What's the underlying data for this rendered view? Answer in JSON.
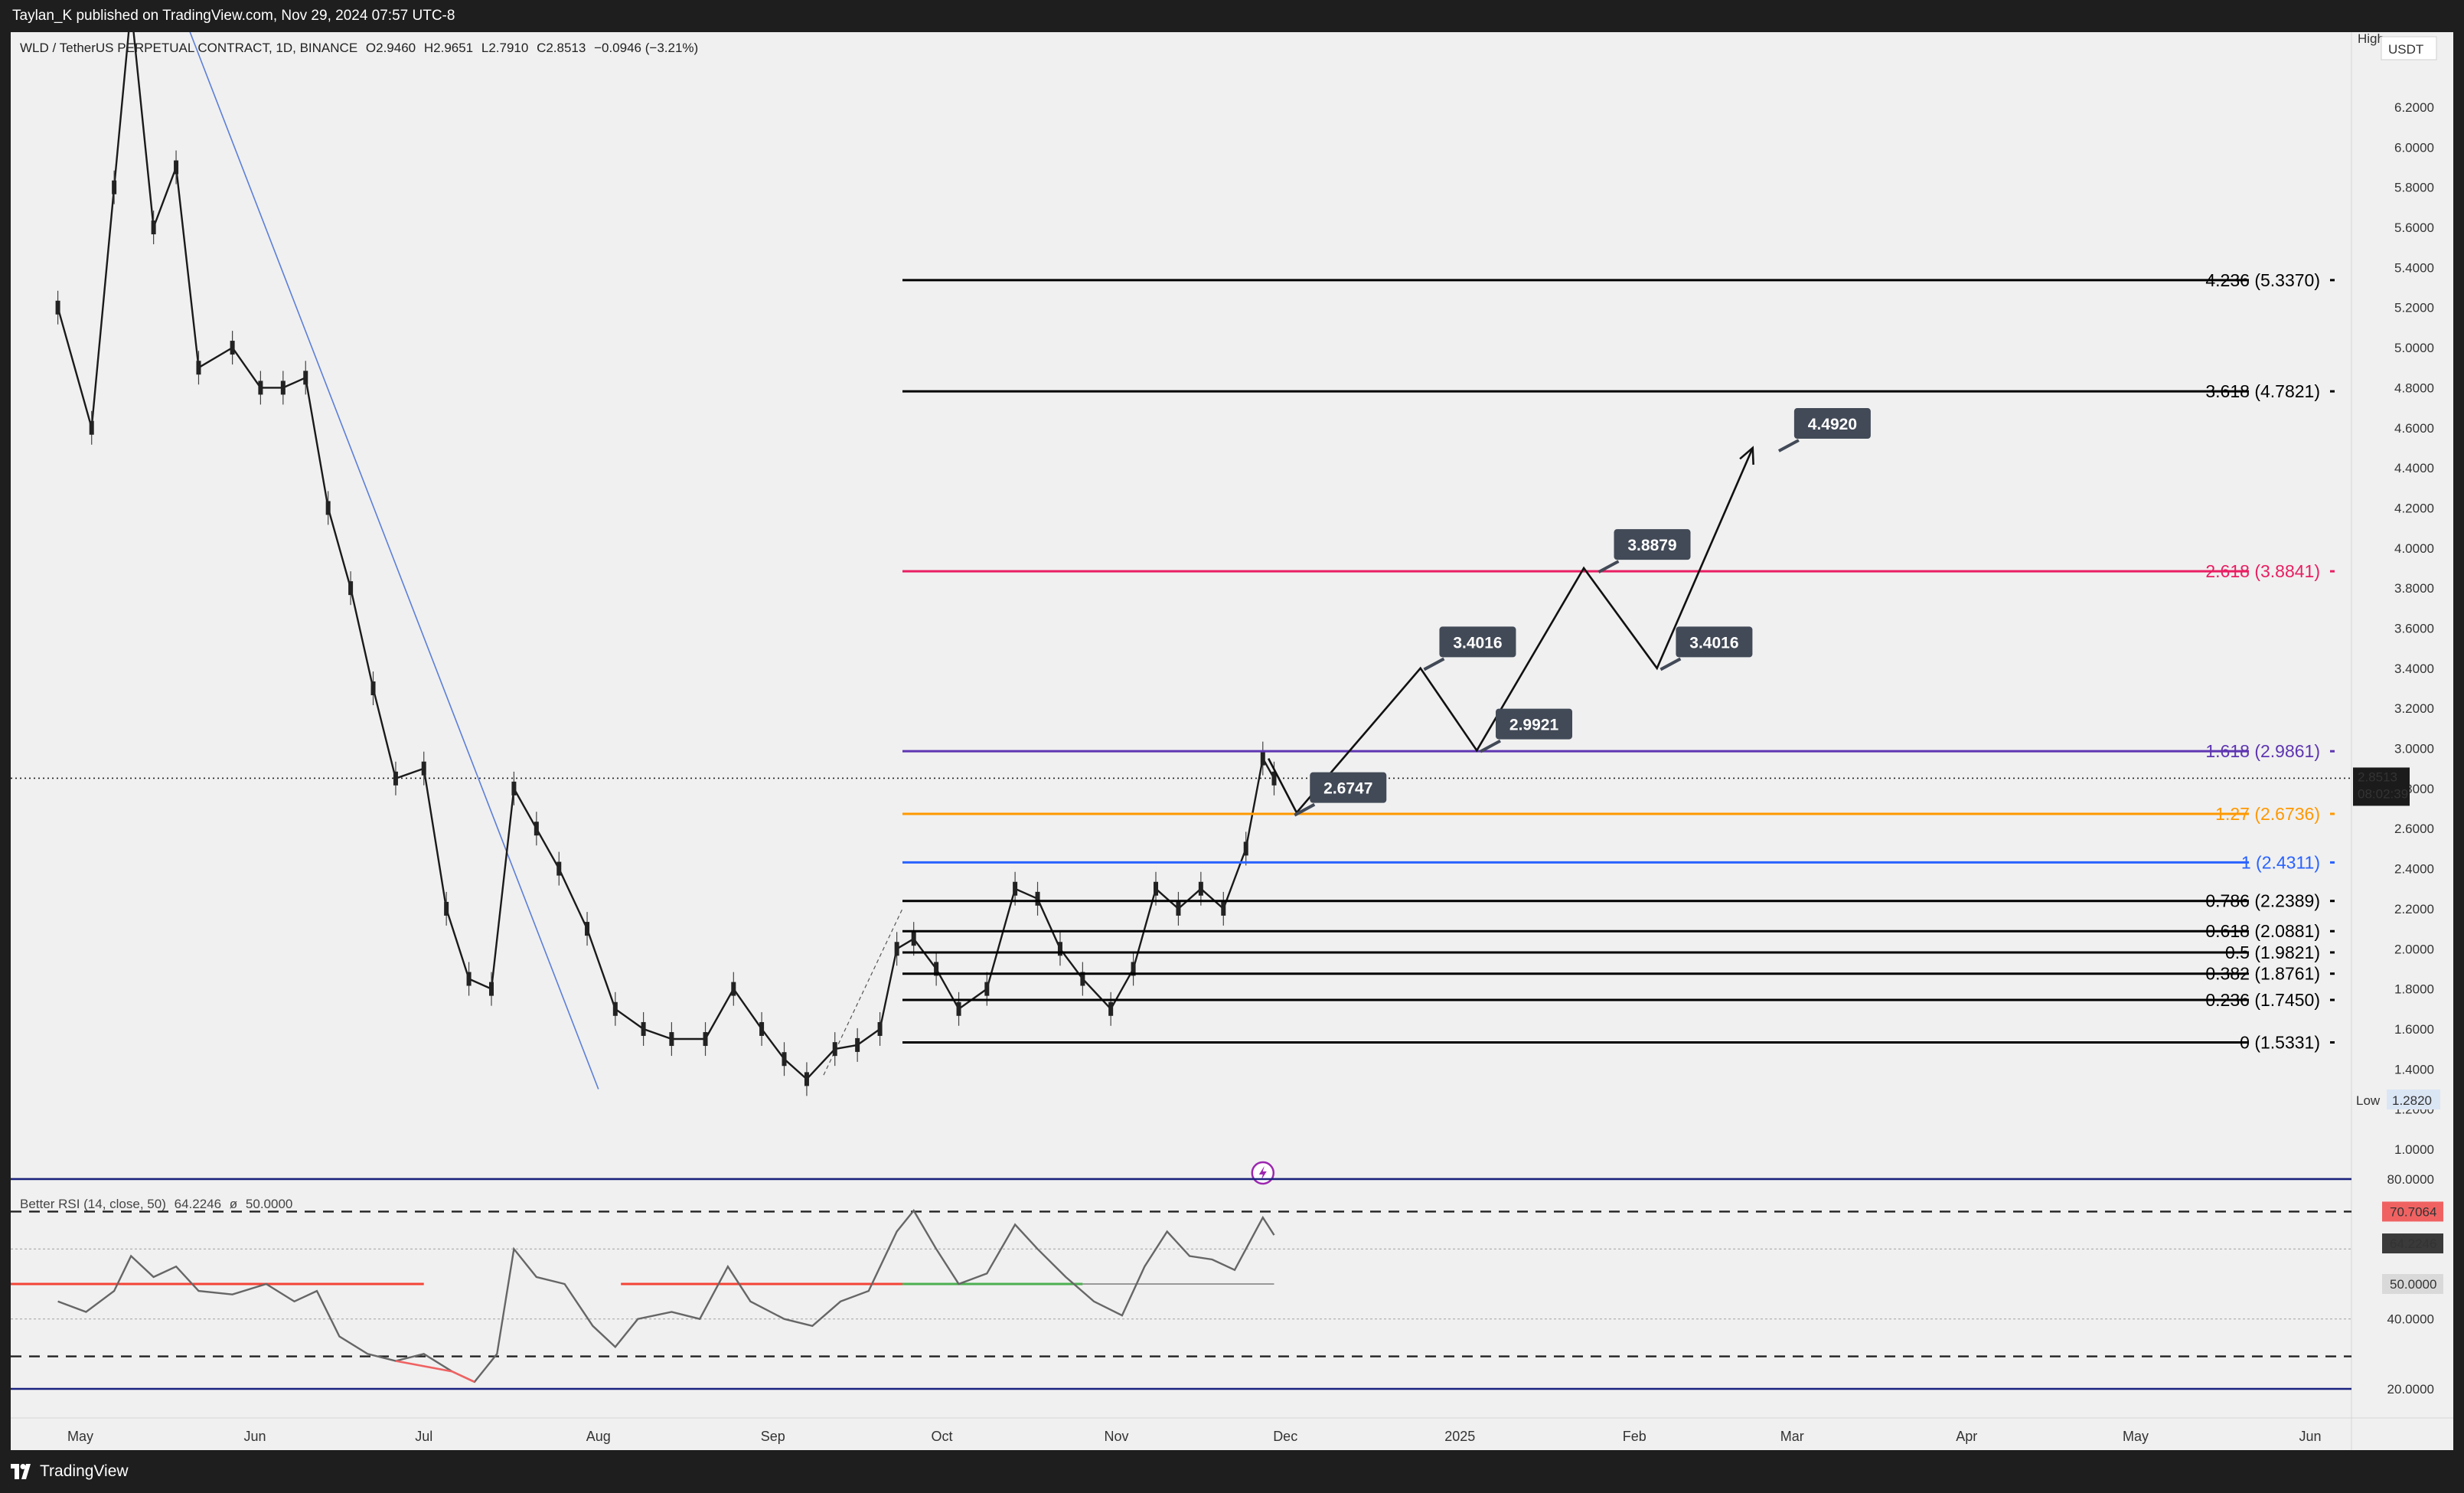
{
  "header": {
    "published": "Taylan_K published on TradingView.com, Nov 29, 2024 07:57 UTC-8"
  },
  "footer": {
    "brand": "TradingView"
  },
  "legend": {
    "symbol": "WLD / TetherUS PERPETUAL CONTRACT, 1D, BINANCE",
    "open": "O2.9460",
    "high": "H2.9651",
    "low": "L2.7910",
    "close": "C2.8513",
    "change": "−0.0946 (−3.21%)"
  },
  "rsi_legend": {
    "name": "Better RSI (14, close, 50)",
    "value": "64.2246",
    "symbol": "ø",
    "mid": "50.0000"
  },
  "chart_data": {
    "type": "line",
    "title": "",
    "symbol": "WLD/USDT Perpetual, 1D, Binance",
    "currency": "USDT",
    "x_labels": [
      "May",
      "Jun",
      "Jul",
      "Aug",
      "Sep",
      "Oct",
      "Nov",
      "Dec",
      "2025",
      "Feb",
      "Mar",
      "Apr",
      "May",
      "Jun"
    ],
    "y_ticks": [
      "1.0000",
      "1.2000",
      "1.4000",
      "1.6000",
      "1.8000",
      "2.0000",
      "2.2000",
      "2.4000",
      "2.6000",
      "2.8000",
      "3.0000",
      "3.2000",
      "3.4000",
      "3.6000",
      "3.8000",
      "4.0000",
      "4.2000",
      "4.4000",
      "4.6000",
      "4.8000",
      "5.0000",
      "5.2000",
      "5.4000",
      "5.6000",
      "5.8000",
      "6.0000",
      "6.2000"
    ],
    "ylim": [
      0.72,
      6.62
    ],
    "last_price": "2.8513",
    "countdown": "08:02:39",
    "high_label": "High",
    "low_label": "Low",
    "low_value": "1.2820",
    "price_path": [
      [
        "2024-04-27",
        5.2
      ],
      [
        "2024-05-03",
        4.6
      ],
      [
        "2024-05-07",
        5.8
      ],
      [
        "2024-05-10",
        6.7
      ],
      [
        "2024-05-14",
        5.6
      ],
      [
        "2024-05-18",
        5.9
      ],
      [
        "2024-05-22",
        4.9
      ],
      [
        "2024-05-28",
        5.0
      ],
      [
        "2024-06-02",
        4.8
      ],
      [
        "2024-06-06",
        4.8
      ],
      [
        "2024-06-10",
        4.85
      ],
      [
        "2024-06-14",
        4.2
      ],
      [
        "2024-06-18",
        3.8
      ],
      [
        "2024-06-22",
        3.3
      ],
      [
        "2024-06-26",
        2.85
      ],
      [
        "2024-07-01",
        2.9
      ],
      [
        "2024-07-05",
        2.2
      ],
      [
        "2024-07-09",
        1.85
      ],
      [
        "2024-07-13",
        1.8
      ],
      [
        "2024-07-17",
        2.8
      ],
      [
        "2024-07-21",
        2.6
      ],
      [
        "2024-07-25",
        2.4
      ],
      [
        "2024-07-30",
        2.1
      ],
      [
        "2024-08-04",
        1.7
      ],
      [
        "2024-08-09",
        1.6
      ],
      [
        "2024-08-14",
        1.55
      ],
      [
        "2024-08-20",
        1.55
      ],
      [
        "2024-08-25",
        1.8
      ],
      [
        "2024-08-30",
        1.6
      ],
      [
        "2024-09-03",
        1.45
      ],
      [
        "2024-09-07",
        1.35
      ],
      [
        "2024-09-12",
        1.5
      ],
      [
        "2024-09-16",
        1.52
      ],
      [
        "2024-09-20",
        1.6
      ],
      [
        "2024-09-23",
        2.0
      ],
      [
        "2024-09-26",
        2.05
      ],
      [
        "2024-09-30",
        1.9
      ],
      [
        "2024-10-04",
        1.7
      ],
      [
        "2024-10-09",
        1.8
      ],
      [
        "2024-10-14",
        2.3
      ],
      [
        "2024-10-18",
        2.25
      ],
      [
        "2024-10-22",
        2.0
      ],
      [
        "2024-10-26",
        1.85
      ],
      [
        "2024-10-31",
        1.7
      ],
      [
        "2024-11-04",
        1.9
      ],
      [
        "2024-11-08",
        2.3
      ],
      [
        "2024-11-12",
        2.2
      ],
      [
        "2024-11-16",
        2.3
      ],
      [
        "2024-11-20",
        2.2
      ],
      [
        "2024-11-24",
        2.5
      ],
      [
        "2024-11-27",
        2.95
      ],
      [
        "2024-11-29",
        2.85
      ]
    ],
    "trendline": [
      [
        "2024-05-16",
        6.9
      ],
      [
        "2024-08-01",
        1.3
      ]
    ],
    "fib_levels": [
      {
        "label": "4.236 (5.3370)",
        "value": 5.337,
        "color": "#000000"
      },
      {
        "label": "3.618 (4.7821)",
        "value": 4.7821,
        "color": "#000000"
      },
      {
        "label": "2.618 (3.8841)",
        "value": 3.8841,
        "color": "#e91e63"
      },
      {
        "label": "1.618 (2.9861)",
        "value": 2.9861,
        "color": "#5e35b1"
      },
      {
        "label": "1.27 (2.6736)",
        "value": 2.6736,
        "color": "#ff9800"
      },
      {
        "label": "1 (2.4311)",
        "value": 2.4311,
        "color": "#2962ff"
      },
      {
        "label": "0.786 (2.2389)",
        "value": 2.2389,
        "color": "#000000"
      },
      {
        "label": "0.618 (2.0881)",
        "value": 2.0881,
        "color": "#000000"
      },
      {
        "label": "0.5 (1.9821)",
        "value": 1.9821,
        "color": "#000000"
      },
      {
        "label": "0.382 (1.8761)",
        "value": 1.8761,
        "color": "#000000"
      },
      {
        "label": "0.236 (1.7450)",
        "value": 1.745,
        "color": "#000000"
      },
      {
        "label": "0 (1.5331)",
        "value": 1.5331,
        "color": "#000000"
      }
    ],
    "fib_start": "2024-09-24",
    "fib_end": "2025-05-16",
    "projection_path": [
      [
        "2024-11-28",
        2.95
      ],
      [
        "2024-12-03",
        2.68
      ],
      [
        "2024-12-25",
        3.4
      ],
      [
        "2025-01-04",
        2.99
      ],
      [
        "2025-01-23",
        3.9
      ],
      [
        "2025-02-05",
        3.4
      ],
      [
        "2025-02-22",
        4.5
      ]
    ],
    "callouts": [
      {
        "text": "2.6747",
        "date": "2024-12-04",
        "value": 2.6747
      },
      {
        "text": "3.4016",
        "date": "2024-12-27",
        "value": 3.4016
      },
      {
        "text": "2.9921",
        "date": "2025-01-06",
        "value": 2.9921
      },
      {
        "text": "3.8879",
        "date": "2025-01-27",
        "value": 3.8879
      },
      {
        "text": "3.4016",
        "date": "2025-02-07",
        "value": 3.4016
      },
      {
        "text": "4.4920",
        "date": "2025-02-28",
        "value": 4.492
      }
    ],
    "rsi": {
      "ylim": [
        15,
        82
      ],
      "y_ticks": [
        "20.0000",
        "40.0000",
        "80.0000"
      ],
      "labels": [
        "70.7064",
        "64.2246",
        "50.0000"
      ],
      "upper": 70.7064,
      "lower": 29.3,
      "mid": 50,
      "values": [
        [
          "2024-04-27",
          45
        ],
        [
          "2024-05-02",
          42
        ],
        [
          "2024-05-07",
          48
        ],
        [
          "2024-05-10",
          58
        ],
        [
          "2024-05-14",
          52
        ],
        [
          "2024-05-18",
          55
        ],
        [
          "2024-05-22",
          48
        ],
        [
          "2024-05-28",
          47
        ],
        [
          "2024-06-03",
          50
        ],
        [
          "2024-06-08",
          45
        ],
        [
          "2024-06-12",
          48
        ],
        [
          "2024-06-16",
          35
        ],
        [
          "2024-06-21",
          30
        ],
        [
          "2024-06-26",
          28
        ],
        [
          "2024-07-01",
          30
        ],
        [
          "2024-07-06",
          25
        ],
        [
          "2024-07-10",
          22
        ],
        [
          "2024-07-14",
          30
        ],
        [
          "2024-07-17",
          60
        ],
        [
          "2024-07-21",
          52
        ],
        [
          "2024-07-26",
          50
        ],
        [
          "2024-07-31",
          38
        ],
        [
          "2024-08-04",
          32
        ],
        [
          "2024-08-08",
          40
        ],
        [
          "2024-08-14",
          42
        ],
        [
          "2024-08-19",
          40
        ],
        [
          "2024-08-24",
          55
        ],
        [
          "2024-08-28",
          45
        ],
        [
          "2024-09-03",
          40
        ],
        [
          "2024-09-08",
          38
        ],
        [
          "2024-09-13",
          45
        ],
        [
          "2024-09-18",
          48
        ],
        [
          "2024-09-23",
          65
        ],
        [
          "2024-09-26",
          71
        ],
        [
          "2024-09-30",
          60
        ],
        [
          "2024-10-04",
          50
        ],
        [
          "2024-10-09",
          53
        ],
        [
          "2024-10-14",
          67
        ],
        [
          "2024-10-18",
          60
        ],
        [
          "2024-10-23",
          52
        ],
        [
          "2024-10-28",
          45
        ],
        [
          "2024-11-02",
          41
        ],
        [
          "2024-11-06",
          55
        ],
        [
          "2024-11-10",
          65
        ],
        [
          "2024-11-14",
          58
        ],
        [
          "2024-11-18",
          57
        ],
        [
          "2024-11-22",
          54
        ],
        [
          "2024-11-26",
          66
        ],
        [
          "2024-11-27",
          69
        ],
        [
          "2024-11-29",
          64
        ]
      ]
    }
  }
}
